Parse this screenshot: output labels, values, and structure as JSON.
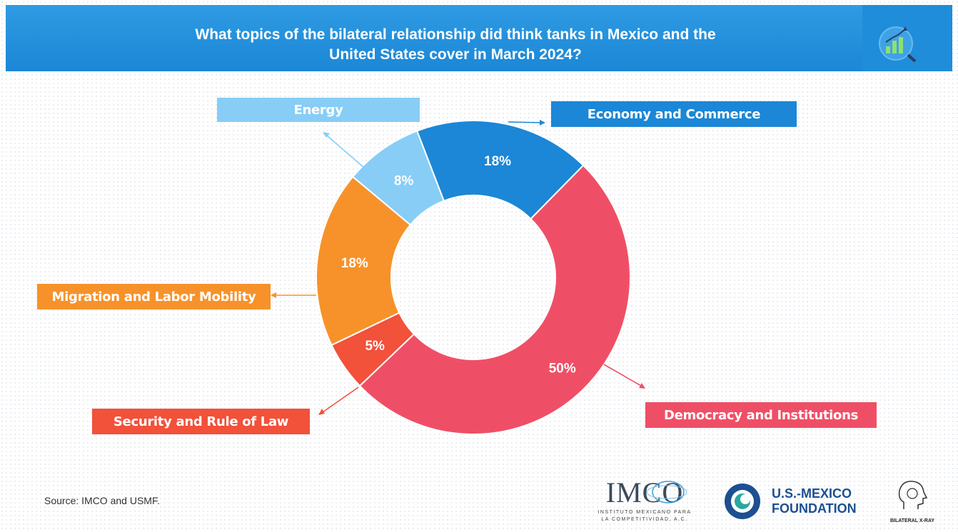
{
  "header": {
    "title_line1": "What topics of the bilateral relationship did think tanks in Mexico and the",
    "title_line2": "United States cover in March 2024?",
    "icon": "bar-chart-magnifier-icon"
  },
  "chart_data": {
    "type": "pie",
    "style": "donut",
    "title": "What topics of the bilateral relationship did think tanks in Mexico and the United States cover in March 2024?",
    "slices": [
      {
        "category": "Economy and Commerce",
        "value": 18,
        "label": "18%",
        "color": "#1b87d6"
      },
      {
        "category": "Democracy and Institutions",
        "value": 50,
        "label": "50%",
        "color": "#ef4f66"
      },
      {
        "category": "Security and Rule of Law",
        "value": 5,
        "label": "5%",
        "color": "#f2513a"
      },
      {
        "category": "Migration and Labor Mobility",
        "value": 18,
        "label": "18%",
        "color": "#f7922a"
      },
      {
        "category": "Energy",
        "value": 8,
        "label": "8%",
        "color": "#87cdf6"
      }
    ]
  },
  "source": "Source: IMCO and USMF.",
  "logos": {
    "imco": {
      "name": "IMCO",
      "subtitle_line1": "INSTITUTO MEXICANO PARA",
      "subtitle_line2": "LA COMPETITIVIDAD, A.C."
    },
    "usmf": {
      "line1": "U.S.-MEXICO",
      "line2": "FOUNDATION",
      "color": "#1d4f91"
    },
    "xray": {
      "name": "BILATERAL X-RAY"
    }
  }
}
